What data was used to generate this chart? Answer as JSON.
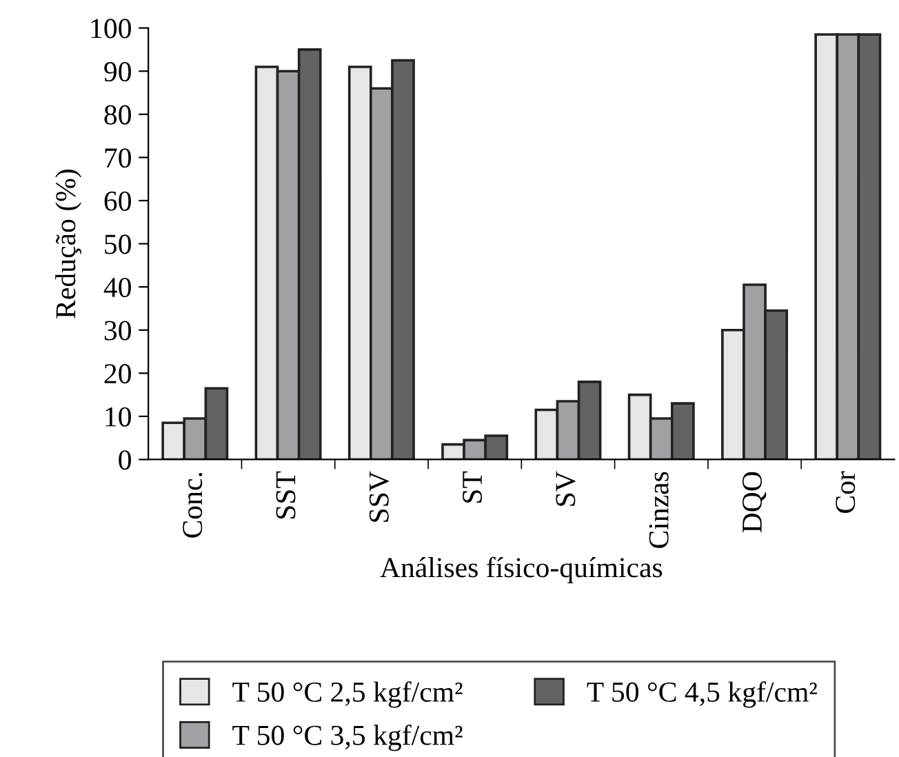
{
  "chart_data": {
    "type": "bar",
    "xlabel": "Análises físico-químicas",
    "ylabel": "Redução (%)",
    "categories": [
      "Conc.",
      "SST",
      "SSV",
      "ST",
      "SV",
      "Cinzas",
      "DQO",
      "Cor"
    ],
    "series": [
      {
        "name": "T 50 °C 2,5 kgf/cm²",
        "color": "#e5e6e8",
        "values": [
          8.5,
          91,
          91,
          3.5,
          11.5,
          15,
          30,
          98.5
        ]
      },
      {
        "name": "T 50 °C 3,5 kgf/cm²",
        "color": "#a0a1a4",
        "values": [
          9.5,
          90,
          86,
          4.5,
          13.5,
          9.5,
          40.5,
          98.5
        ]
      },
      {
        "name": "T 50 °C 4,5 kgf/cm²",
        "color": "#636365",
        "values": [
          16.5,
          95,
          92.5,
          5.5,
          18,
          13,
          34.5,
          98.5
        ]
      }
    ],
    "ylim": [
      0,
      100
    ],
    "yticks": [
      0,
      10,
      20,
      30,
      40,
      50,
      60,
      70,
      80,
      90,
      100
    ],
    "grid": false,
    "legend": "bottom"
  }
}
